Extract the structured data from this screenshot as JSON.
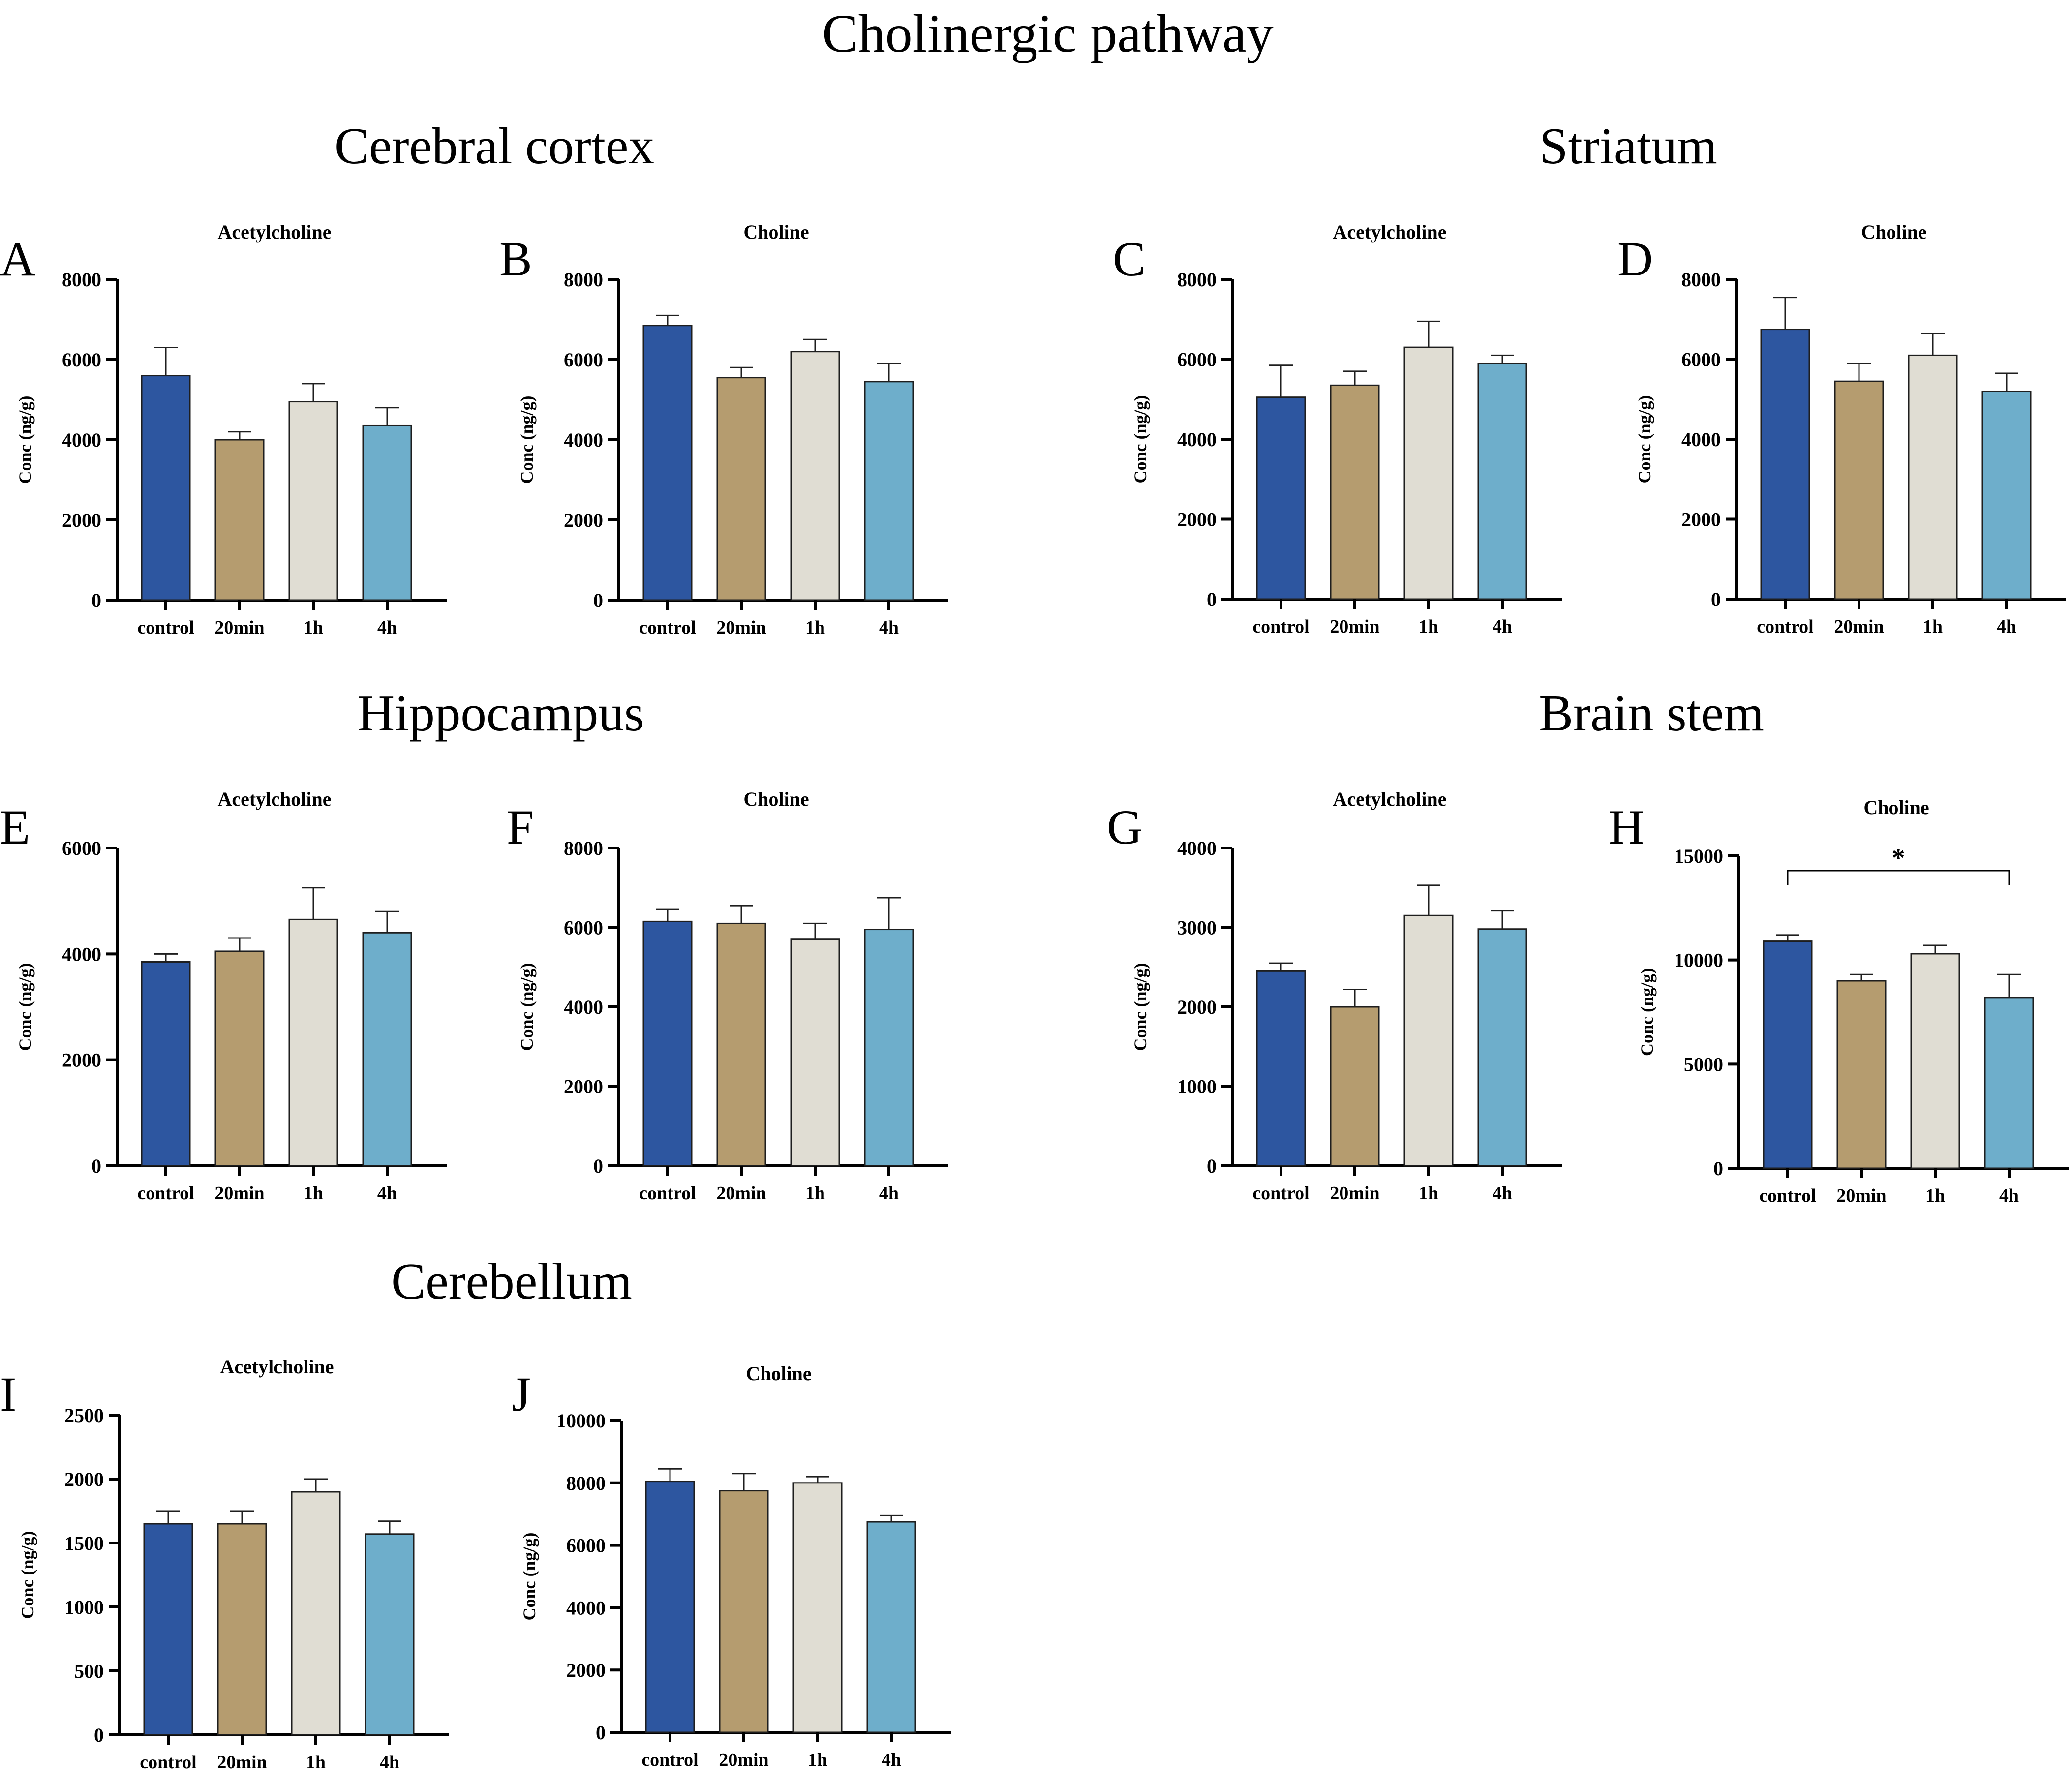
{
  "figure": {
    "title": "Cholinergic pathway"
  },
  "regions": [
    {
      "id": "cortex",
      "title": "Cerebral cortex"
    },
    {
      "id": "striatum",
      "title": "Striatum"
    },
    {
      "id": "hippocampus",
      "title": "Hippocampus"
    },
    {
      "id": "brainstem",
      "title": "Brain stem"
    },
    {
      "id": "cerebellum",
      "title": "Cerebellum"
    }
  ],
  "colors": [
    "#2d56a0",
    "#b59c6f",
    "#e0ddd3",
    "#6eaecb"
  ],
  "chart_data": [
    {
      "panel": "A",
      "type": "bar",
      "title": "Acetylcholine",
      "ylabel": "Conc (ng/g)",
      "categories": [
        "control",
        "20min",
        "1h",
        "4h"
      ],
      "values": [
        5600,
        4000,
        4950,
        4350
      ],
      "errors": [
        700,
        200,
        450,
        450
      ],
      "ylim": [
        0,
        8000
      ],
      "yticks": [
        0,
        2000,
        4000,
        6000,
        8000
      ]
    },
    {
      "panel": "B",
      "type": "bar",
      "title": "Choline",
      "ylabel": "Conc (ng/g)",
      "categories": [
        "control",
        "20min",
        "1h",
        "4h"
      ],
      "values": [
        6850,
        5550,
        6200,
        5450
      ],
      "errors": [
        250,
        250,
        300,
        450
      ],
      "ylim": [
        0,
        8000
      ],
      "yticks": [
        0,
        2000,
        4000,
        6000,
        8000
      ]
    },
    {
      "panel": "C",
      "type": "bar",
      "title": "Acetylcholine",
      "ylabel": "Conc (ng/g)",
      "categories": [
        "control",
        "20min",
        "1h",
        "4h"
      ],
      "values": [
        5050,
        5350,
        6300,
        5900
      ],
      "errors": [
        800,
        350,
        650,
        200
      ],
      "ylim": [
        0,
        8000
      ],
      "yticks": [
        0,
        2000,
        4000,
        6000,
        8000
      ]
    },
    {
      "panel": "D",
      "type": "bar",
      "title": "Choline",
      "ylabel": "Conc (ng/g)",
      "categories": [
        "control",
        "20min",
        "1h",
        "4h"
      ],
      "values": [
        6750,
        5450,
        6100,
        5200
      ],
      "errors": [
        800,
        450,
        550,
        450
      ],
      "ylim": [
        0,
        8000
      ],
      "yticks": [
        0,
        2000,
        4000,
        6000,
        8000
      ]
    },
    {
      "panel": "E",
      "type": "bar",
      "title": "Acetylcholine",
      "ylabel": "Conc (ng/g)",
      "categories": [
        "control",
        "20min",
        "1h",
        "4h"
      ],
      "values": [
        3850,
        4050,
        4650,
        4400
      ],
      "errors": [
        150,
        250,
        600,
        400
      ],
      "ylim": [
        0,
        6000
      ],
      "yticks": [
        0,
        2000,
        4000,
        6000
      ]
    },
    {
      "panel": "F",
      "type": "bar",
      "title": "Choline",
      "ylabel": "Conc (ng/g)",
      "categories": [
        "control",
        "20min",
        "1h",
        "4h"
      ],
      "values": [
        6150,
        6100,
        5700,
        5950
      ],
      "errors": [
        300,
        450,
        400,
        800
      ],
      "ylim": [
        0,
        8000
      ],
      "yticks": [
        0,
        2000,
        4000,
        6000,
        8000
      ]
    },
    {
      "panel": "G",
      "type": "bar",
      "title": "Acetylcholine",
      "ylabel": "Conc (ng/g)",
      "categories": [
        "control",
        "20min",
        "1h",
        "4h"
      ],
      "values": [
        2450,
        2000,
        3150,
        2980
      ],
      "errors": [
        100,
        220,
        380,
        230
      ],
      "ylim": [
        0,
        4000
      ],
      "yticks": [
        0,
        1000,
        2000,
        3000,
        4000
      ]
    },
    {
      "panel": "H",
      "type": "bar",
      "title": "Choline",
      "ylabel": "Conc (ng/g)",
      "categories": [
        "control",
        "20min",
        "1h",
        "4h"
      ],
      "values": [
        10900,
        9000,
        10300,
        8200
      ],
      "errors": [
        300,
        300,
        400,
        1100
      ],
      "ylim": [
        0,
        15000
      ],
      "yticks": [
        0,
        5000,
        10000,
        15000
      ],
      "significance": {
        "from": 0,
        "to": 3,
        "label": "*"
      }
    },
    {
      "panel": "I",
      "type": "bar",
      "title": "Acetylcholine",
      "ylabel": "Conc (ng/g)",
      "categories": [
        "control",
        "20min",
        "1h",
        "4h"
      ],
      "values": [
        1650,
        1650,
        1900,
        1570
      ],
      "errors": [
        100,
        100,
        100,
        100
      ],
      "ylim": [
        0,
        2500
      ],
      "yticks": [
        0,
        500,
        1000,
        1500,
        2000,
        2500
      ]
    },
    {
      "panel": "J",
      "type": "bar",
      "title": "Choline",
      "ylabel": "Conc (ng/g)",
      "categories": [
        "control",
        "20min",
        "1h",
        "4h"
      ],
      "values": [
        8050,
        7750,
        8000,
        6750
      ],
      "errors": [
        400,
        550,
        200,
        200
      ],
      "ylim": [
        0,
        10000
      ],
      "yticks": [
        0,
        2000,
        4000,
        6000,
        8000,
        10000
      ]
    }
  ]
}
